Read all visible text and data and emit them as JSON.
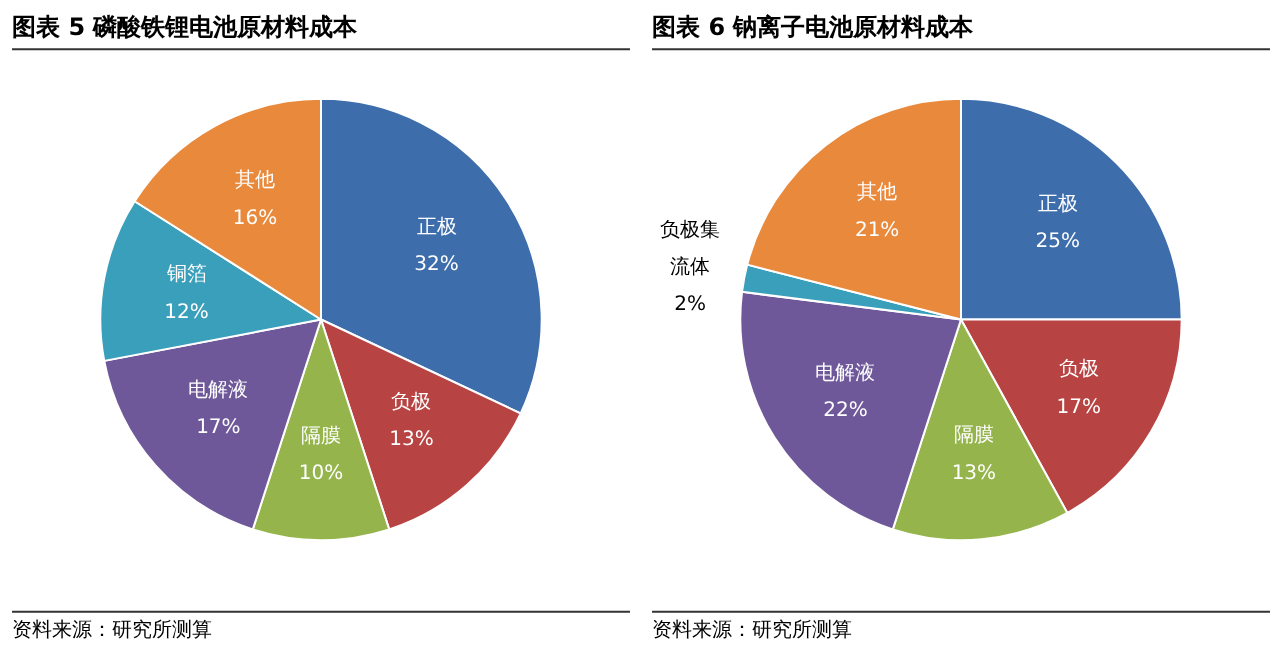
{
  "chart_data": [
    {
      "type": "pie",
      "title": "图表 5 磷酸铁锂电池原材料成本",
      "categories": [
        "正极",
        "负极",
        "隔膜",
        "电解液",
        "铜箔",
        "其他"
      ],
      "values": [
        32,
        13,
        10,
        17,
        12,
        16
      ],
      "value_labels": [
        "32%",
        "13%",
        "10%",
        "17%",
        "12%",
        "16%"
      ],
      "colors": [
        "#3d6dab",
        "#b84343",
        "#95b54c",
        "#6e5899",
        "#3a9fba",
        "#e8893c"
      ],
      "annotations": [
        "资料来源：研究所测算"
      ]
    },
    {
      "type": "pie",
      "title": "图表 6 钠离子电池原材料成本",
      "categories": [
        "正极",
        "负极",
        "隔膜",
        "电解液",
        "负极集流体",
        "其他"
      ],
      "values": [
        25,
        17,
        13,
        22,
        2,
        21
      ],
      "value_labels": [
        "25%",
        "17%",
        "13%",
        "22%",
        "2%",
        "21%"
      ],
      "colors": [
        "#3d6dab",
        "#b84343",
        "#95b54c",
        "#6e5899",
        "#3a9fba",
        "#e8893c"
      ],
      "annotations": [
        "资料来源：研究所测算"
      ]
    }
  ]
}
